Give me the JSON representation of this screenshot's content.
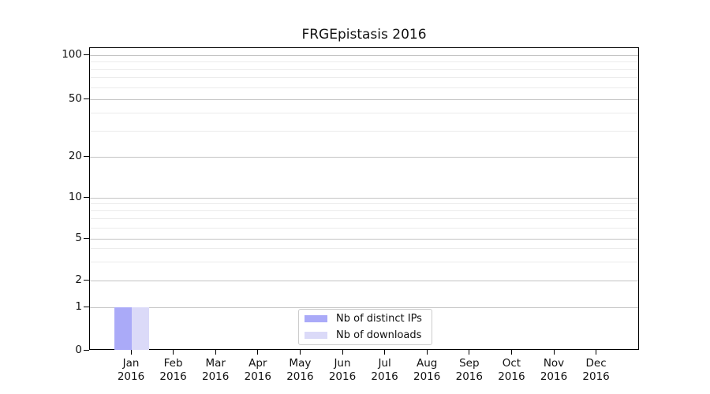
{
  "chart_data": {
    "type": "bar",
    "title": "FRGEpistasis 2016",
    "year": "2016",
    "months": [
      "Jan",
      "Feb",
      "Mar",
      "Apr",
      "May",
      "Jun",
      "Jul",
      "Aug",
      "Sep",
      "Oct",
      "Nov",
      "Dec"
    ],
    "categories": [
      "Jan 2016",
      "Feb 2016",
      "Mar 2016",
      "Apr 2016",
      "May 2016",
      "Jun 2016",
      "Jul 2016",
      "Aug 2016",
      "Sep 2016",
      "Oct 2016",
      "Nov 2016",
      "Dec 2016"
    ],
    "series": [
      {
        "name": "Nb of distinct IPs",
        "color": "#aaaaf8",
        "values": [
          1,
          0,
          0,
          0,
          0,
          0,
          0,
          0,
          0,
          0,
          0,
          0
        ]
      },
      {
        "name": "Nb of downloads",
        "color": "#dbdaf8",
        "values": [
          1,
          0,
          0,
          0,
          0,
          0,
          0,
          0,
          0,
          0,
          0,
          0
        ]
      }
    ],
    "xlabel": "",
    "ylabel": "",
    "yscale": "symlog",
    "ylim": [
      0,
      112
    ],
    "y_major_ticks": [
      0,
      1,
      2,
      5,
      10,
      20,
      50,
      100
    ],
    "y_minor_gridlines": [
      3,
      4,
      6,
      7,
      8,
      9,
      30,
      40,
      60,
      70,
      80,
      90
    ],
    "grid": "horizontal major + minor, no vertical grid",
    "legend_position": "lower center inside plot",
    "colors": {
      "axis": "#000000",
      "grid_major": "#c3c3c3",
      "grid_minor": "#ebebeb",
      "legend_border": "#cccccc",
      "text": "#111111"
    }
  }
}
